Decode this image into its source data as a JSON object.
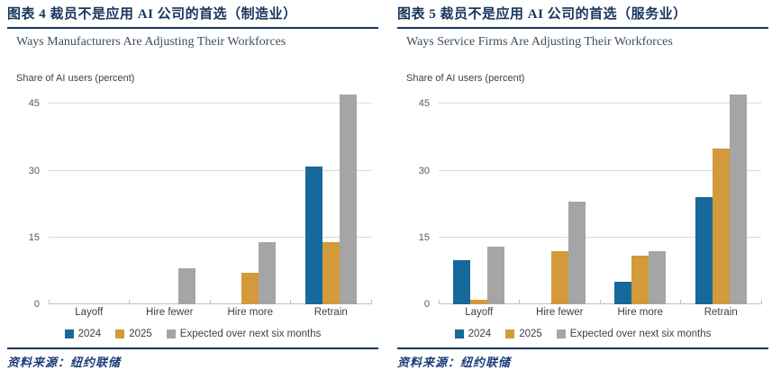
{
  "colors": {
    "accent_navy": "#17365d",
    "subtitle_text": "#3d4f61",
    "source_blue": "#1c3d7a",
    "series_2024_blue": "#17699c",
    "series_2025_orange": "#d29a3a",
    "series_expected_gray": "#a5a5a5",
    "gridline_gray": "#d9d9d9",
    "axis_gray": "#c0c0c0"
  },
  "panels": [
    {
      "figure_label": "图表 4  裁员不是应用 AI 公司的首选（制造业）",
      "en_title": "Ways Manufacturers Are Adjusting Their Workforces",
      "axis_note": "Share of AI users (percent)",
      "source_label": "资料来源：",
      "source_value": "纽约联储"
    },
    {
      "figure_label": "图表 5  裁员不是应用 AI 公司的首选（服务业）",
      "en_title": "Ways Service Firms Are Adjusting Their Workforces",
      "axis_note": "Share of AI users (percent)",
      "source_label": "资料来源：",
      "source_value": "纽约联储"
    }
  ],
  "chart_data": [
    {
      "type": "bar",
      "title": "Ways Manufacturers Are Adjusting Their Workforces",
      "xlabel": "",
      "ylabel": "Share of AI users (percent)",
      "categories": [
        "Layoff",
        "Hire fewer",
        "Hire more",
        "Retrain"
      ],
      "series": [
        {
          "name": "2024",
          "color": "#17699c",
          "values": [
            0,
            0,
            0,
            31
          ]
        },
        {
          "name": "2025",
          "color": "#d29a3a",
          "values": [
            0,
            0,
            7,
            14
          ]
        },
        {
          "name": "Expected over next six months",
          "color": "#a5a5a5",
          "values": [
            0,
            8,
            14,
            47
          ]
        }
      ],
      "ylim": [
        0,
        47.7
      ],
      "yticks": [
        0,
        15,
        30,
        45
      ],
      "grid": "horizontal",
      "legend_position": "bottom"
    },
    {
      "type": "bar",
      "title": "Ways Service Firms Are Adjusting Their Workforces",
      "xlabel": "",
      "ylabel": "Share of AI users (percent)",
      "categories": [
        "Layoff",
        "Hire fewer",
        "Hire more",
        "Retrain"
      ],
      "series": [
        {
          "name": "2024",
          "color": "#17699c",
          "values": [
            10,
            0,
            5,
            24
          ]
        },
        {
          "name": "2025",
          "color": "#d29a3a",
          "values": [
            1,
            12,
            11,
            35
          ]
        },
        {
          "name": "Expected over next six months",
          "color": "#a5a5a5",
          "values": [
            13,
            23,
            12,
            47
          ]
        }
      ],
      "ylim": [
        0,
        47.7
      ],
      "yticks": [
        0,
        15,
        30,
        45
      ],
      "grid": "horizontal",
      "legend_position": "bottom"
    }
  ]
}
